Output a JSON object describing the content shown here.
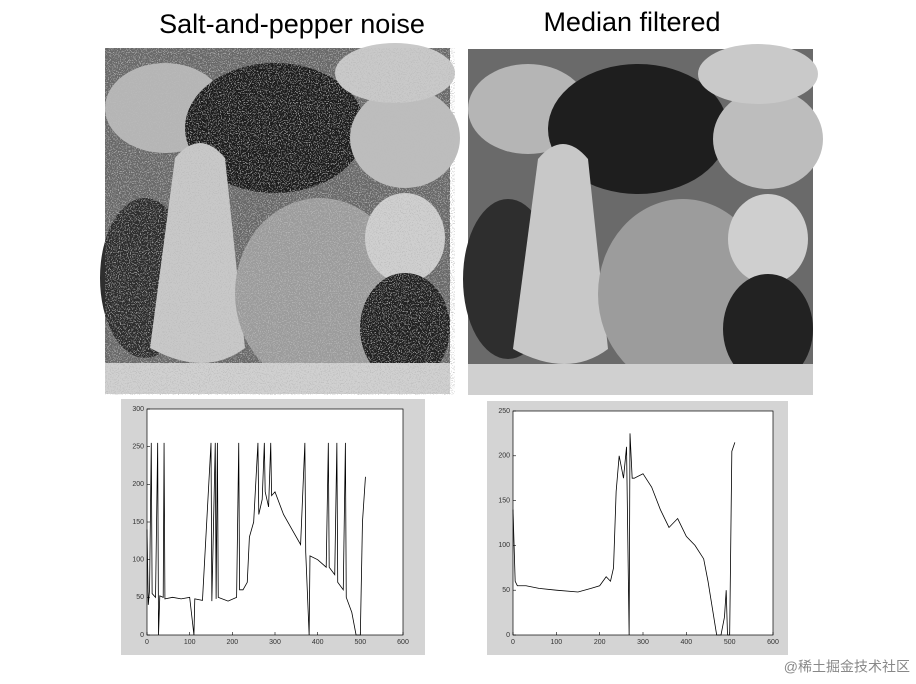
{
  "header": {
    "left_title": "Salt-and-pepper noise",
    "right_title": "Median filtered"
  },
  "watermark": "@稀土掘金技术社区",
  "chart_data": [
    {
      "type": "line",
      "color": "#000000",
      "x": [
        0,
        3,
        6,
        10,
        12,
        20,
        25,
        27,
        30,
        38,
        40,
        42,
        60,
        80,
        100,
        110,
        112,
        130,
        150,
        152,
        160,
        162,
        165,
        167,
        190,
        210,
        215,
        217,
        225,
        235,
        240,
        250,
        260,
        262,
        270,
        275,
        277,
        285,
        290,
        292,
        300,
        320,
        340,
        360,
        370,
        372,
        380,
        382,
        400,
        420,
        425,
        427,
        440,
        445,
        447,
        460,
        465,
        467,
        480,
        490,
        500,
        505,
        512
      ],
      "values": [
        140,
        40,
        60,
        255,
        55,
        50,
        255,
        0,
        52,
        50,
        255,
        48,
        50,
        48,
        50,
        0,
        48,
        46,
        255,
        45,
        255,
        48,
        255,
        50,
        45,
        50,
        255,
        60,
        60,
        70,
        130,
        150,
        255,
        160,
        180,
        255,
        190,
        170,
        255,
        185,
        190,
        160,
        140,
        120,
        255,
        110,
        0,
        105,
        100,
        90,
        255,
        90,
        80,
        255,
        70,
        60,
        255,
        50,
        30,
        0,
        0,
        150,
        210
      ],
      "xlim": [
        0,
        600
      ],
      "xticks": [
        0,
        100,
        200,
        300,
        400,
        500,
        600
      ],
      "ylim": [
        0,
        300
      ],
      "yticks": [
        0,
        50,
        100,
        150,
        200,
        250,
        300
      ]
    },
    {
      "type": "line",
      "color": "#000000",
      "x": [
        0,
        5,
        10,
        30,
        60,
        100,
        150,
        180,
        200,
        215,
        225,
        232,
        238,
        245,
        255,
        262,
        268,
        270,
        275,
        280,
        300,
        320,
        340,
        360,
        380,
        400,
        420,
        440,
        450,
        460,
        470,
        480,
        488,
        492,
        495,
        500,
        505,
        512
      ],
      "values": [
        140,
        60,
        55,
        55,
        52,
        50,
        48,
        52,
        55,
        65,
        60,
        75,
        160,
        200,
        175,
        210,
        0,
        225,
        175,
        175,
        180,
        165,
        140,
        120,
        130,
        110,
        100,
        85,
        60,
        30,
        0,
        0,
        20,
        50,
        0,
        0,
        205,
        215
      ],
      "xlim": [
        0,
        600
      ],
      "xticks": [
        0,
        100,
        200,
        300,
        400,
        500,
        600
      ],
      "ylim": [
        0,
        250
      ],
      "yticks": [
        0,
        50,
        100,
        150,
        200,
        250
      ]
    }
  ]
}
